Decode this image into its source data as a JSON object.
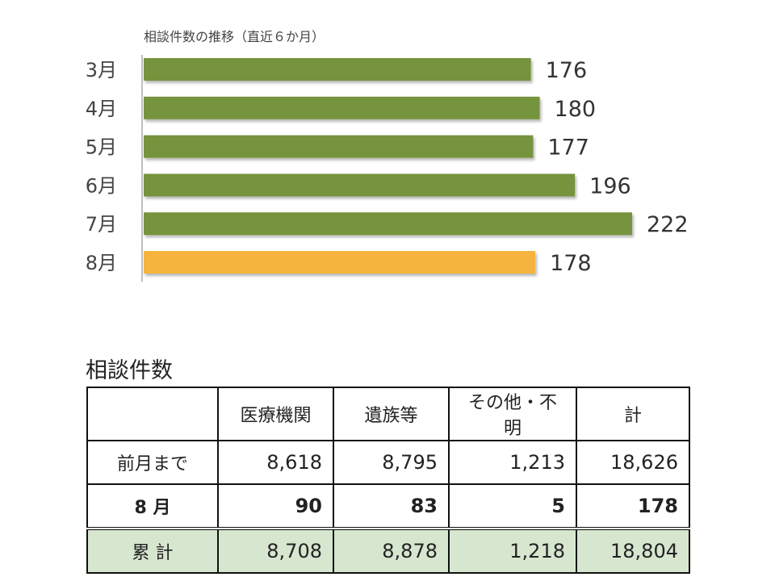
{
  "chart_data": {
    "type": "bar",
    "orientation": "horizontal",
    "title": "相談件数の推移（直近６か月）",
    "categories": [
      "3月",
      "4月",
      "5月",
      "6月",
      "7月",
      "8月"
    ],
    "values": [
      176,
      180,
      177,
      196,
      222,
      178
    ],
    "value_labels": [
      "176",
      "180",
      "177",
      "196",
      "222",
      "178"
    ],
    "colors": [
      "#76933c",
      "#76933c",
      "#76933c",
      "#76933c",
      "#76933c",
      "#f4b43c"
    ],
    "xlim": [
      0,
      222
    ],
    "grid": false,
    "legend": "none"
  },
  "table": {
    "title": "相談件数",
    "headers": [
      "",
      "医療機関",
      "遺族等",
      "その他・不明",
      "計"
    ],
    "rows": [
      {
        "label": "前月まで",
        "values": [
          "8,618",
          "8,795",
          "1,213",
          "18,626"
        ]
      },
      {
        "label": "8 月",
        "values": [
          "90",
          "83",
          "5",
          "178"
        ]
      },
      {
        "label": "累 計",
        "values": [
          "8,708",
          "8,878",
          "1,218",
          "18,804"
        ]
      }
    ],
    "cum_bg": "#d7e6cf"
  }
}
